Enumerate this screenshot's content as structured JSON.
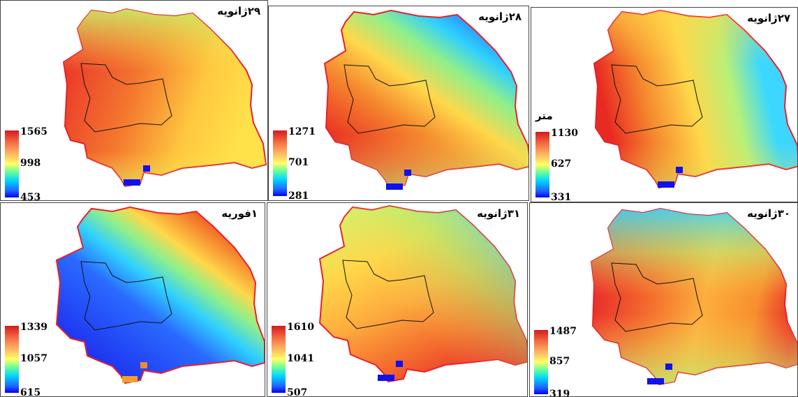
{
  "panels": [
    {
      "id": "jan29",
      "title": "۲۹ژانویه",
      "legend": {
        "max": "1565",
        "mid": "998",
        "min": "453"
      },
      "unit": ""
    },
    {
      "id": "jan28",
      "title": "۲۸ژانویه",
      "legend": {
        "max": "1271",
        "mid": "701",
        "min": "281"
      },
      "unit": ""
    },
    {
      "id": "jan27",
      "title": "۲۷ژانویه",
      "legend": {
        "max": "1130",
        "mid": "627",
        "min": "331"
      },
      "unit": "متر"
    },
    {
      "id": "feb1",
      "title": "۱فوریه",
      "legend": {
        "max": "1339",
        "mid": "1057",
        "min": "615"
      },
      "unit": ""
    },
    {
      "id": "jan31",
      "title": "۳۱ژانویه",
      "legend": {
        "max": "1610",
        "mid": "1041",
        "min": "507"
      },
      "unit": ""
    },
    {
      "id": "jan30",
      "title": "۳۰ژانویه",
      "legend": {
        "max": "1487",
        "mid": "857",
        "min": "319"
      },
      "unit": ""
    }
  ],
  "colors": {
    "boundary": "#e8202a",
    "inner_boundary": "#111111",
    "high": "#d7191c",
    "low": "#0000ff"
  }
}
